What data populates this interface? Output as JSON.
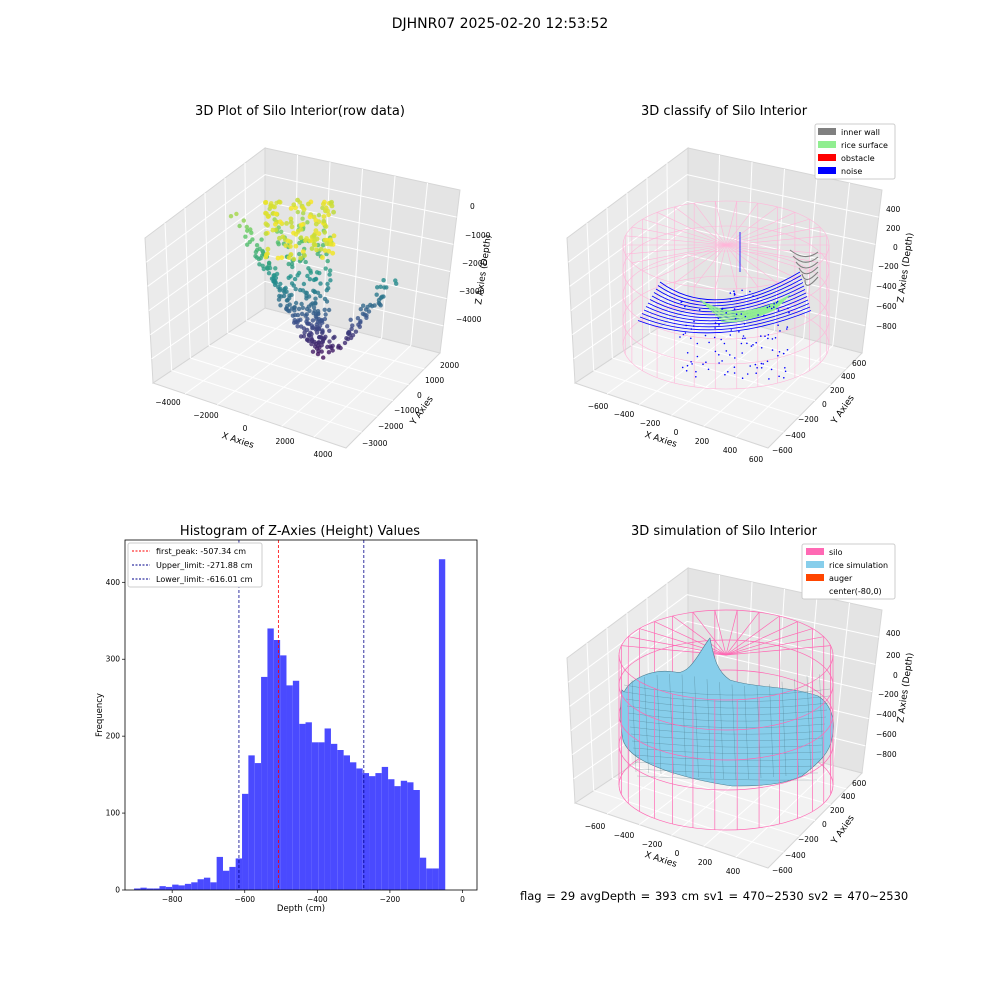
{
  "suptitle": "DJHNR07 2025-02-20 12:53:52",
  "footer": "flag = 29  avgDepth = 393 cm  sv1 = 470~2530  sv2 = 470~2530",
  "chart_data": [
    {
      "type": "scatter",
      "title": "3D Plot of Silo Interior(row data)",
      "xlabel": "X Axies",
      "ylabel": "Y Axies",
      "zlabel": "Z Axies (Depth)",
      "x_ticks": [
        "−4000",
        "−2000",
        "0",
        "2000",
        "4000"
      ],
      "y_ticks": [
        "−3000",
        "−2000",
        "−1000",
        "0",
        "1000",
        "2000"
      ],
      "z_ticks": [
        "−4000",
        "−3000",
        "−2000",
        "−1000",
        "0"
      ],
      "xlim": [
        -4500,
        4500
      ],
      "ylim": [
        -3500,
        2500
      ],
      "zlim": [
        -4500,
        500
      ],
      "colormap": "viridis",
      "grid": true
    },
    {
      "type": "scatter",
      "title": "3D classify of Silo Interior",
      "xlabel": "X Axies",
      "ylabel": "Y Axies",
      "zlabel": "Z Axies (Depth)",
      "x_ticks": [
        "−600",
        "−400",
        "−200",
        "0",
        "200",
        "400",
        "600"
      ],
      "y_ticks": [
        "−600",
        "−400",
        "−200",
        "0",
        "200",
        "400",
        "600"
      ],
      "z_ticks": [
        "−800",
        "−600",
        "−400",
        "−200",
        "0",
        "200",
        "400"
      ],
      "legend_position": "top-right",
      "legend": [
        {
          "label": "inner wall",
          "color": "#808080"
        },
        {
          "label": "rice surface",
          "color": "#90ee90"
        },
        {
          "label": "obstacle",
          "color": "#ff0000"
        },
        {
          "label": "noise",
          "color": "#0000ff"
        }
      ],
      "silo_color": "#ffb6d9",
      "grid": true
    },
    {
      "type": "bar",
      "title": "Histogram of Z-Axies (Height) Values",
      "xlabel": "Depth (cm)",
      "ylabel": "Frequency",
      "xlim": [
        -930,
        40
      ],
      "ylim": [
        0,
        455
      ],
      "x_ticks": [
        {
          "value": -800,
          "label": "−800"
        },
        {
          "value": -600,
          "label": "−600"
        },
        {
          "value": -400,
          "label": "−400"
        },
        {
          "value": -200,
          "label": "−200"
        },
        {
          "value": 0,
          "label": "0"
        }
      ],
      "y_ticks": [
        {
          "value": 0,
          "label": "0"
        },
        {
          "value": 100,
          "label": "100"
        },
        {
          "value": 200,
          "label": "200"
        },
        {
          "value": 300,
          "label": "300"
        },
        {
          "value": 400,
          "label": "400"
        }
      ],
      "bin_start": -905,
      "bin_width": 17.5,
      "values": [
        2,
        3,
        2,
        2,
        5,
        4,
        7,
        6,
        8,
        10,
        14,
        16,
        10,
        43,
        25,
        30,
        41,
        125,
        175,
        165,
        277,
        340,
        325,
        305,
        266,
        272,
        216,
        218,
        192,
        192,
        210,
        190,
        182,
        175,
        166,
        158,
        152,
        148,
        152,
        160,
        144,
        135,
        142,
        140,
        130,
        42,
        28,
        28,
        430
      ],
      "bar_color": "#4a4aff",
      "legend_position": "top-left",
      "lines": [
        {
          "label": "first_peak: -507.34 cm",
          "value": -507.34,
          "color": "#ff0000"
        },
        {
          "label": "Upper_limit: -271.88 cm",
          "value": -271.88,
          "color": "#00008b"
        },
        {
          "label": "Lower_limit: -616.01 cm",
          "value": -616.01,
          "color": "#00008b"
        }
      ]
    },
    {
      "type": "surface",
      "title": "3D simulation of Silo Interior",
      "xlabel": "X Axies",
      "ylabel": "Y Axies",
      "zlabel": "Z Axies (Depth)",
      "x_ticks": [
        "−600",
        "−400",
        "−200",
        "0",
        "200",
        "400"
      ],
      "y_ticks": [
        "−600",
        "−400",
        "−200",
        "0",
        "200",
        "400",
        "600"
      ],
      "z_ticks": [
        "−800",
        "−600",
        "−400",
        "−200",
        "0",
        "200",
        "400"
      ],
      "legend_position": "top-right",
      "legend": [
        {
          "label": "silo",
          "color": "#ff69b4"
        },
        {
          "label": "rice simulation",
          "color": "#87ceeb"
        },
        {
          "label": "auger",
          "color": "#ff4500"
        },
        {
          "label": "center(-80,0)",
          "color": "#ffffff"
        }
      ],
      "grid": true
    }
  ]
}
